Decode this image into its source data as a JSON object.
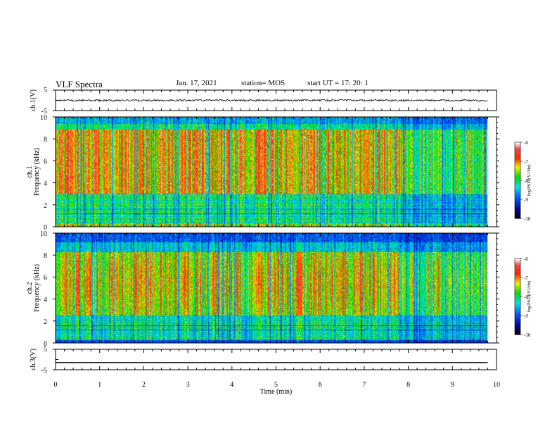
{
  "header": {
    "title": "VLF Spectra",
    "date": "Jan. 17, 2021",
    "station": "station= MOS",
    "start": "start  UT =   17: 20: 1"
  },
  "chart_data": [
    {
      "type": "line",
      "id": "ch1",
      "ylabel": "ch.1(V)",
      "yticks": [
        "5",
        "-5"
      ],
      "ylim": [
        -5,
        5
      ],
      "xlim": [
        0,
        10
      ],
      "series": [
        {
          "x": [
            0,
            9.8
          ],
          "y": [
            0,
            0
          ],
          "note_visible": "noisy trace near 0 V"
        }
      ]
    },
    {
      "type": "heatmap",
      "id": "ch1-spectrogram",
      "ylabel": [
        "ch.1",
        "Frequency  (kHz)"
      ],
      "yticks": [
        0,
        2,
        4,
        6,
        8,
        10
      ],
      "ylim": [
        0,
        10
      ],
      "xlim": [
        0,
        10
      ],
      "data_end_min": 9.8,
      "colorbar": {
        "label": "log(PSD)(V²/Hz)",
        "ticks": [
          "-6",
          "-7",
          "-8",
          "-9",
          "-10"
        ],
        "range": [
          -10,
          -6
        ]
      }
    },
    {
      "type": "heatmap",
      "id": "ch2-spectrogram",
      "ylabel": [
        "ch.2",
        "Frequency  (kHz)"
      ],
      "yticks": [
        0,
        2,
        4,
        6,
        8,
        10
      ],
      "ylim": [
        0,
        10
      ],
      "xlim": [
        0,
        10
      ],
      "data_end_min": 9.8,
      "colorbar": {
        "label": "log(PSD)(V²/Hz)",
        "ticks": [
          "-6",
          "-7",
          "-8",
          "-9",
          "-10"
        ],
        "range": [
          -10,
          -6
        ]
      }
    },
    {
      "type": "line",
      "id": "ch3",
      "ylabel": "ch.3(V)",
      "yticks": [
        "5",
        "-5"
      ],
      "ylim": [
        -5,
        5
      ],
      "xlim": [
        0,
        10
      ],
      "series": [
        {
          "x": [
            0,
            9.8
          ],
          "y": [
            -1.5,
            -1.5
          ]
        }
      ]
    }
  ],
  "xaxis": {
    "label": "Time  (min)",
    "ticks": [
      "0",
      "1",
      "2",
      "3",
      "4",
      "5",
      "6",
      "7",
      "8",
      "9",
      "10"
    ]
  }
}
